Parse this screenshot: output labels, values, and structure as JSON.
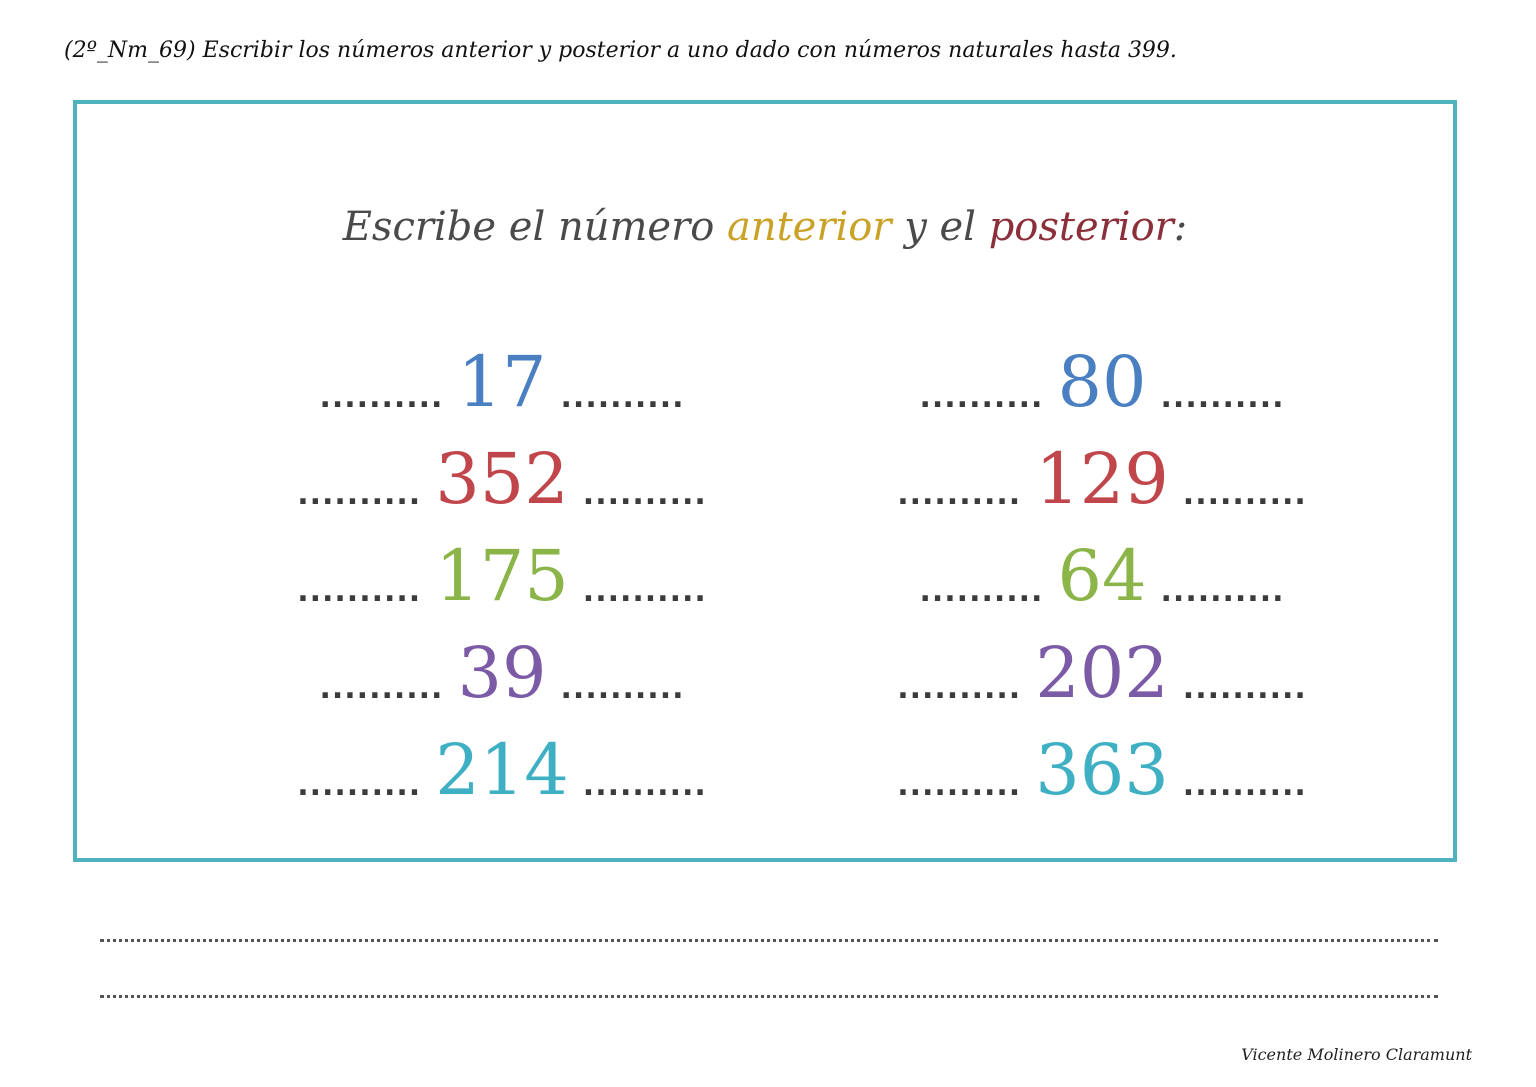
{
  "header": {
    "text": "(2º_Nm_69) Escribir los números anterior y posterior a uno dado con números naturales hasta 399."
  },
  "instruction": {
    "part1": "Escribe el número ",
    "anterior": "anterior",
    "part2": " y el ",
    "posterior": "posterior",
    "part3": ":"
  },
  "placeholder": "..........",
  "colors": {
    "border": "#4fb3bf",
    "anterior": "#c9a227",
    "posterior": "#8b2f3a",
    "blue": "#4a7fc1",
    "red": "#c0464b",
    "green": "#8bb548",
    "purple": "#7b5aa6",
    "teal": "#3fb0c4"
  },
  "left_column": [
    {
      "value": "17",
      "color": "#4a7fc1"
    },
    {
      "value": "352",
      "color": "#c0464b"
    },
    {
      "value": "175",
      "color": "#8bb548"
    },
    {
      "value": "39",
      "color": "#7b5aa6"
    },
    {
      "value": "214",
      "color": "#3fb0c4"
    }
  ],
  "right_column": [
    {
      "value": "80",
      "color": "#4a7fc1"
    },
    {
      "value": "129",
      "color": "#c0464b"
    },
    {
      "value": "64",
      "color": "#8bb548"
    },
    {
      "value": "202",
      "color": "#7b5aa6"
    },
    {
      "value": "363",
      "color": "#3fb0c4"
    }
  ],
  "author": "Vicente Molinero Claramunt"
}
